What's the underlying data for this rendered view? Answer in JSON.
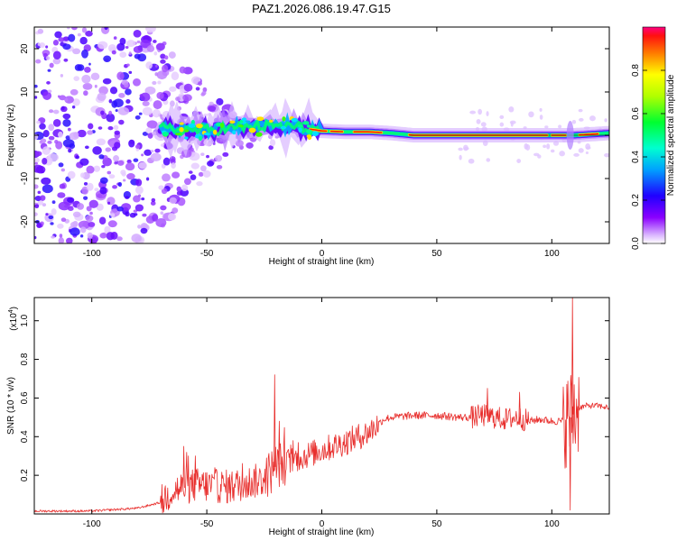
{
  "title": "PAZ1.2026.086.19.47.G15",
  "chart_data": [
    {
      "type": "heatmap",
      "name": "spectrogram",
      "title": "PAZ1.2026.086.19.47.G15",
      "xlabel": "Height of straight line (km)",
      "ylabel": "Frequency (Hz)",
      "xlim": [
        -125,
        125
      ],
      "ylim": [
        -25,
        25
      ],
      "x_ticks": [
        -100,
        -50,
        0,
        50,
        100
      ],
      "y_ticks": [
        -20,
        -10,
        0,
        10,
        20
      ],
      "colorbar": {
        "label": "Normalized spectral amplitude",
        "range": [
          0,
          1
        ],
        "ticks": [
          0.0,
          0.2,
          0.4,
          0.6,
          0.8
        ],
        "tick_labels": [
          "0.0",
          "0.2",
          "0.4",
          "0.6",
          "0.8"
        ]
      },
      "ridge": {
        "description": "dominant frequency ridge near 0 Hz",
        "x": [
          -70,
          -50,
          -30,
          -15,
          0,
          10,
          20,
          30,
          40,
          60,
          80,
          100,
          110,
          125
        ],
        "frequency_hz": [
          1.5,
          1.2,
          2.0,
          2.2,
          1.0,
          0.8,
          0.8,
          0.5,
          0.0,
          0.0,
          0.0,
          0.0,
          0.0,
          0.5
        ]
      }
    },
    {
      "type": "line",
      "name": "snr",
      "xlabel": "Height of straight line (km)",
      "ylabel": "SNR (10 * v/v)",
      "y_scale_label": "(x10",
      "y_scale_exp": "4",
      "xlim": [
        -125,
        125
      ],
      "ylim": [
        0,
        1.12
      ],
      "x_ticks": [
        -100,
        -50,
        0,
        50,
        100
      ],
      "y_ticks": [
        0.2,
        0.4,
        0.6,
        0.8,
        1.0
      ],
      "y_tick_labels": [
        "0.2",
        "0.4",
        "0.6",
        "0.8",
        "1.0"
      ],
      "color": "#e8302e",
      "series": [
        {
          "name": "SNR",
          "x": [
            -125,
            -100,
            -80,
            -70,
            -65,
            -55,
            -40,
            -25,
            -20,
            -10,
            0,
            10,
            20,
            27,
            30,
            40,
            50,
            60,
            65,
            70,
            75,
            80,
            85,
            90,
            95,
            100,
            105,
            108,
            110,
            112,
            115,
            120,
            125
          ],
          "y": [
            0.015,
            0.015,
            0.03,
            0.06,
            0.12,
            0.15,
            0.14,
            0.18,
            0.25,
            0.29,
            0.33,
            0.37,
            0.42,
            0.49,
            0.5,
            0.51,
            0.51,
            0.5,
            0.5,
            0.51,
            0.5,
            0.49,
            0.5,
            0.48,
            0.49,
            0.48,
            0.48,
            0.5,
            0.53,
            0.55,
            0.56,
            0.56,
            0.55
          ],
          "spikes": [
            {
              "x": -20.5,
              "y": 0.72
            },
            {
              "x": -18.5,
              "y": 0.48
            },
            {
              "x": -60,
              "y": 0.35
            },
            {
              "x": -55,
              "y": 0.3
            },
            {
              "x": 72,
              "y": 0.65
            },
            {
              "x": 86,
              "y": 0.63
            },
            {
              "x": 109,
              "y": 1.12
            },
            {
              "x": 108,
              "y": 0.02
            }
          ]
        }
      ]
    }
  ]
}
